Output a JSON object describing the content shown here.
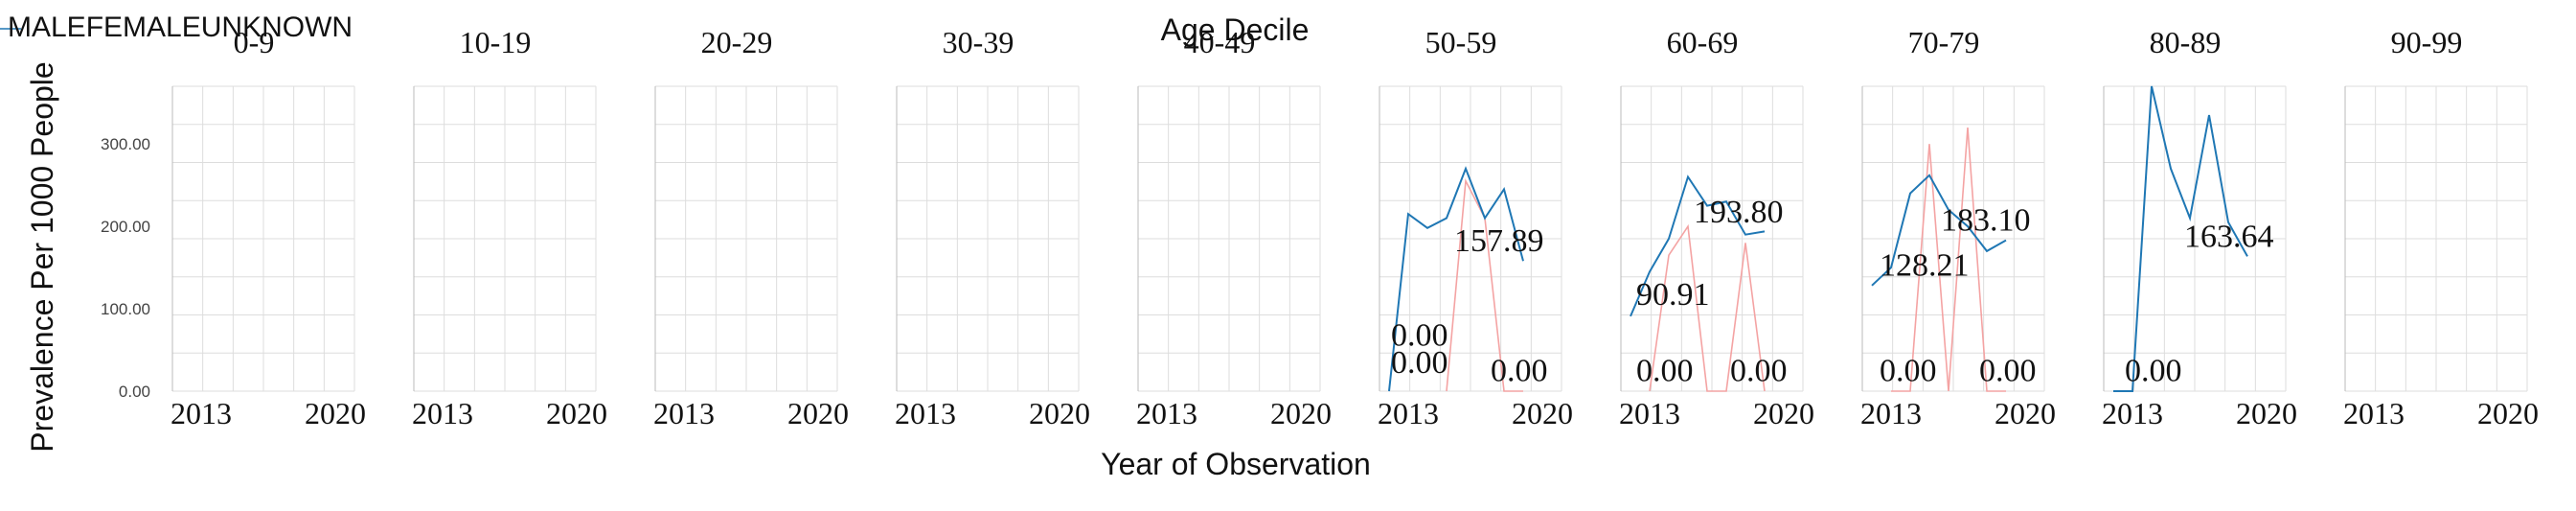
{
  "chart_data": {
    "type": "line",
    "title": "Age Decile",
    "xlabel": "Year of Observation",
    "ylabel": "Prevalence Per 1000 People",
    "legend": {
      "placement": "top-left",
      "entries": [
        "MALE",
        "FEMALE",
        "UNKNOWN"
      ]
    },
    "ylim": [
      0,
      370
    ],
    "yticks": [
      "0.00",
      "100.00",
      "200.00",
      "300.00"
    ],
    "xlim": [
      2011.5,
      2021
    ],
    "xticks": [
      "2013",
      "2020"
    ],
    "grid": true,
    "colors": {
      "MALE": "#1f77b4",
      "FEMALE": "#f4a3a3"
    },
    "panels": [
      {
        "label": "0-9",
        "series": []
      },
      {
        "label": "10-19",
        "series": []
      },
      {
        "label": "20-29",
        "series": []
      },
      {
        "label": "30-39",
        "series": []
      },
      {
        "label": "40-49",
        "series": []
      },
      {
        "label": "50-59",
        "series": [
          {
            "name": "MALE",
            "x": [
              2012,
              2013,
              2014,
              2015,
              2016,
              2017,
              2018,
              2019
            ],
            "y": [
              0,
              215,
              198,
              210,
              270,
              210,
              245,
              157.89
            ]
          },
          {
            "name": "FEMALE",
            "x": [
              2015,
              2016,
              2017,
              2018,
              2019
            ],
            "y": [
              0,
              255,
              210,
              0,
              0
            ]
          }
        ],
        "data_labels": [
          {
            "text": "0.00",
            "x": 2012.1,
            "y": 55
          },
          {
            "text": "0.00",
            "x": 2012.1,
            "y": 22
          },
          {
            "text": "157.89",
            "x": 2015.4,
            "y": 170
          },
          {
            "text": "0.00",
            "x": 2017.3,
            "y": 12
          }
        ]
      },
      {
        "label": "60-69",
        "series": [
          {
            "name": "MALE",
            "x": [
              2012,
              2013,
              2014,
              2015,
              2016,
              2017,
              2018,
              2019
            ],
            "y": [
              90.91,
              145,
              185,
              260,
              225,
              230,
              190,
              193.8
            ]
          },
          {
            "name": "FEMALE",
            "x": [
              2013,
              2014,
              2015,
              2016,
              2017,
              2018,
              2019
            ],
            "y": [
              0,
              165,
              200,
              0,
              0,
              180,
              0
            ]
          }
        ],
        "data_labels": [
          {
            "text": "90.91",
            "x": 2012.3,
            "y": 105
          },
          {
            "text": "193.80",
            "x": 2015.3,
            "y": 205
          },
          {
            "text": "0.00",
            "x": 2012.3,
            "y": 12
          },
          {
            "text": "0.00",
            "x": 2017.2,
            "y": 12
          }
        ]
      },
      {
        "label": "70-79",
        "series": [
          {
            "name": "MALE",
            "x": [
              2012,
              2013,
              2014,
              2015,
              2016,
              2017,
              2018,
              2019
            ],
            "y": [
              128.21,
              150,
              240,
              262,
              220,
              200,
              170,
              183.1
            ]
          },
          {
            "name": "FEMALE",
            "x": [
              2013,
              2014,
              2015,
              2016,
              2017,
              2018,
              2019
            ],
            "y": [
              0,
              0,
              300,
              0,
              320,
              0,
              0
            ]
          }
        ],
        "data_labels": [
          {
            "text": "128.21",
            "x": 2012.4,
            "y": 140
          },
          {
            "text": "183.10",
            "x": 2015.6,
            "y": 195
          },
          {
            "text": "0.00",
            "x": 2012.4,
            "y": 12
          },
          {
            "text": "0.00",
            "x": 2017.6,
            "y": 12
          }
        ]
      },
      {
        "label": "80-89",
        "series": [
          {
            "name": "MALE",
            "x": [
              2012,
              2013,
              2014,
              2015,
              2016,
              2017,
              2018,
              2019
            ],
            "y": [
              0,
              0,
              370,
              270,
              210,
              335,
              205,
              163.64
            ]
          },
          {
            "name": "FEMALE",
            "x": [],
            "y": []
          }
        ],
        "data_labels": [
          {
            "text": "163.64",
            "x": 2015.7,
            "y": 175
          },
          {
            "text": "0.00",
            "x": 2012.6,
            "y": 12
          }
        ]
      },
      {
        "label": "90-99",
        "series": []
      }
    ]
  }
}
